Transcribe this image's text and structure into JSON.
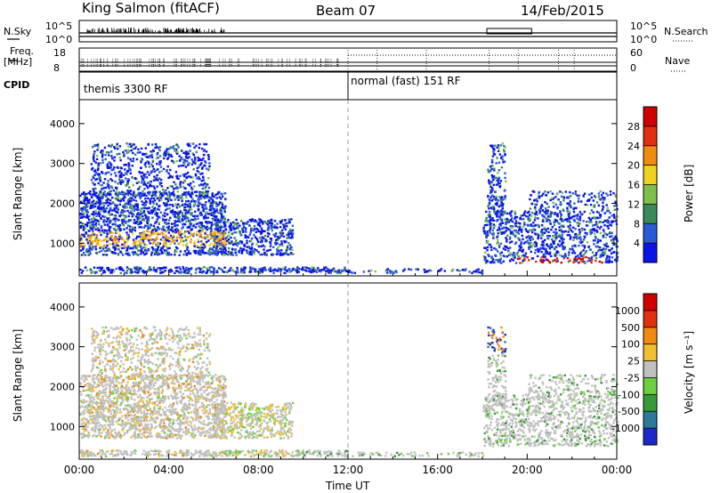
{
  "header": {
    "station": "King Salmon (fitACF)",
    "beam": "Beam 07",
    "date": "14/Feb/2015"
  },
  "aux": {
    "nsky_label": "N.Sky",
    "nsearch_label": "N.Search",
    "freq_label": "Freq.",
    "freq_unit": "[MHz]",
    "nave_label": "Nave",
    "cpid_label": "CPID",
    "noise_ticks": [
      "10^5",
      "10^0"
    ],
    "noise_ticks_right": [
      "10^5",
      "10^0"
    ],
    "freq_ticks": [
      "18",
      "8"
    ],
    "nave_ticks": [
      "60",
      "0"
    ],
    "cpid_segments": [
      {
        "label": "themis 3300 RF",
        "start_hour": 0,
        "end_hour": 12
      },
      {
        "label": "normal (fast) 151 RF",
        "start_hour": 12,
        "end_hour": 24
      }
    ]
  },
  "chart_data": [
    {
      "type": "heatmap",
      "name": "power",
      "ylabel": "Slant Range [km]",
      "xlabel": "Time UT",
      "x_ticks": [
        "00:00",
        "04:00",
        "08:00",
        "12:00",
        "16:00",
        "20:00",
        "00:00"
      ],
      "x_range_hours": [
        0,
        24
      ],
      "ylim": [
        180,
        4600
      ],
      "y_ticks": [
        1000,
        2000,
        3000,
        4000
      ],
      "colorbar": {
        "label": "Power [dB]",
        "ticks": [
          "4",
          "8",
          "12",
          "16",
          "20",
          "24",
          "28"
        ],
        "colors": [
          "#0a14e6",
          "#2a5ad8",
          "#3a8a5a",
          "#7fc04a",
          "#f0d020",
          "#f08a10",
          "#e03010",
          "#d00000"
        ]
      },
      "features": [
        {
          "desc": "dense echoes",
          "hours": [
            0,
            6.5
          ],
          "range_km": [
            600,
            3500
          ],
          "peak": "orange band near 1000-1300 km"
        },
        {
          "desc": "blob",
          "hours": [
            6,
            9.5
          ],
          "range_km": [
            700,
            1600
          ]
        },
        {
          "desc": "plume",
          "hours": [
            18.2,
            19
          ],
          "range_km": [
            1500,
            3500
          ]
        },
        {
          "desc": "arcs",
          "hours": [
            18,
            24
          ],
          "range_km": [
            500,
            2300
          ],
          "peak": "red near 550 km"
        }
      ]
    },
    {
      "type": "heatmap",
      "name": "velocity",
      "ylabel": "Slant Range [km]",
      "xlabel": "Time UT",
      "x_ticks": [
        "00:00",
        "04:00",
        "08:00",
        "12:00",
        "16:00",
        "20:00",
        "00:00"
      ],
      "x_range_hours": [
        0,
        24
      ],
      "ylim": [
        180,
        4600
      ],
      "y_ticks": [
        1000,
        2000,
        3000,
        4000
      ],
      "colorbar": {
        "label": "Velocity [m s⁻¹]",
        "ticks": [
          "1000",
          "500",
          "100",
          "25",
          "-25",
          "-100",
          "-500",
          "-1000"
        ],
        "colors": [
          "#1e28c8",
          "#2a7a9a",
          "#3a9a3a",
          "#6ad040",
          "#c0c0c0",
          "#f0c030",
          "#f08a10",
          "#e03010",
          "#d00000"
        ]
      }
    }
  ],
  "colors": {
    "dashed_line": "#999999",
    "frame": "#000000"
  }
}
